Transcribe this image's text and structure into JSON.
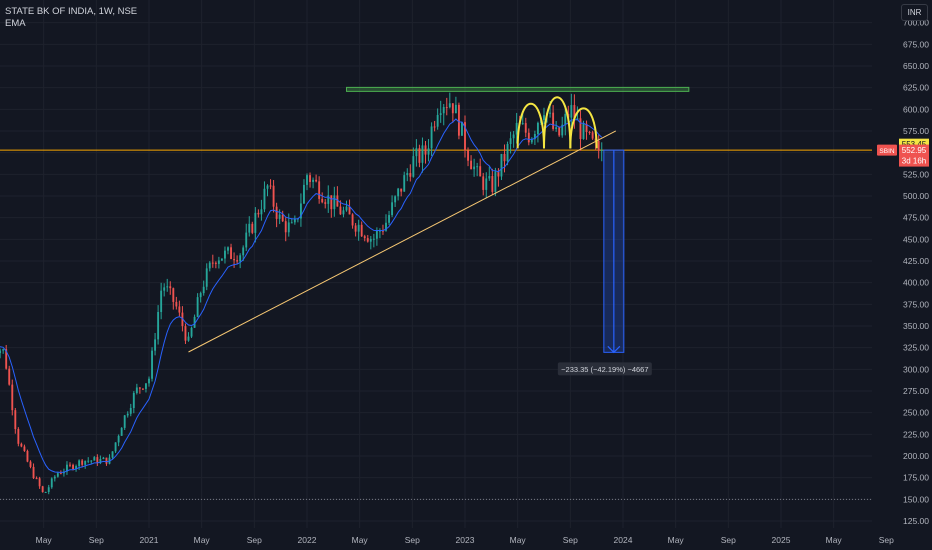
{
  "header": {
    "symbol_line": "STATE BK OF INDIA, 1W, NSE",
    "indicator": "EMA"
  },
  "currency_button": "INR",
  "colors": {
    "background": "#131722",
    "up": "#26a69a",
    "down": "#ef5350",
    "ema": "#2962ff",
    "trendline": "#f7c873",
    "resistance": "#4caf50",
    "hump": "#f4e542",
    "projection": "#2962ff"
  },
  "chart_data": {
    "type": "candlestick",
    "title": "STATE BK OF INDIA, 1W, NSE",
    "y_axis": {
      "ticks": [
        125,
        150,
        175,
        200,
        225,
        250,
        275,
        300,
        325,
        350,
        375,
        400,
        425,
        450,
        475,
        500,
        525,
        550,
        575,
        600,
        625,
        650,
        675,
        700
      ],
      "range": [
        122,
        710
      ],
      "side": "right"
    },
    "x_axis": {
      "labels": [
        "May",
        "Sep",
        "2021",
        "May",
        "Sep",
        "2022",
        "May",
        "Sep",
        "2023",
        "May",
        "Sep",
        "2024",
        "May",
        "Sep",
        "2025",
        "May",
        "Sep"
      ]
    },
    "price_path": [
      {
        "date": "2020-01",
        "value": 330
      },
      {
        "date": "2020-02",
        "value": 320
      },
      {
        "date": "2020-03",
        "value": 220
      },
      {
        "date": "2020-04",
        "value": 185
      },
      {
        "date": "2020-05",
        "value": 155
      },
      {
        "date": "2020-06",
        "value": 180
      },
      {
        "date": "2020-08",
        "value": 195
      },
      {
        "date": "2020-10",
        "value": 195
      },
      {
        "date": "2020-11",
        "value": 240
      },
      {
        "date": "2020-12",
        "value": 275
      },
      {
        "date": "2021-01",
        "value": 290
      },
      {
        "date": "2021-02",
        "value": 400
      },
      {
        "date": "2021-03",
        "value": 375
      },
      {
        "date": "2021-04",
        "value": 330
      },
      {
        "date": "2021-05",
        "value": 395
      },
      {
        "date": "2021-06",
        "value": 430
      },
      {
        "date": "2021-08",
        "value": 435
      },
      {
        "date": "2021-10",
        "value": 510
      },
      {
        "date": "2021-11",
        "value": 470
      },
      {
        "date": "2021-12",
        "value": 460
      },
      {
        "date": "2022-01",
        "value": 525
      },
      {
        "date": "2022-03",
        "value": 490
      },
      {
        "date": "2022-05",
        "value": 465
      },
      {
        "date": "2022-06",
        "value": 450
      },
      {
        "date": "2022-07",
        "value": 470
      },
      {
        "date": "2022-09",
        "value": 540
      },
      {
        "date": "2022-10",
        "value": 550
      },
      {
        "date": "2022-11",
        "value": 610
      },
      {
        "date": "2022-12",
        "value": 610
      },
      {
        "date": "2023-01",
        "value": 560
      },
      {
        "date": "2023-02",
        "value": 520
      },
      {
        "date": "2023-03",
        "value": 510
      },
      {
        "date": "2023-04",
        "value": 545
      },
      {
        "date": "2023-05",
        "value": 580
      },
      {
        "date": "2023-06",
        "value": 570
      },
      {
        "date": "2023-07",
        "value": 605
      },
      {
        "date": "2023-08",
        "value": 565
      },
      {
        "date": "2023-09",
        "value": 600
      },
      {
        "date": "2023-10",
        "value": 570
      },
      {
        "date": "2023-11",
        "value": 552.95
      }
    ],
    "ema_period_note": "",
    "last_price": 552.95,
    "last_price_label": "552.95",
    "ticker_label": "SBIN",
    "countdown_label": "3d 16h",
    "ema_value": 553.45,
    "ema_value_label": "553.45",
    "horizontal_lines": [
      {
        "value": 552.95,
        "color": "#f7a600"
      },
      {
        "value": 150,
        "color": "#787b86",
        "style": "dotted"
      }
    ],
    "resistance_zone": {
      "from_date": "2022-04",
      "to_date": "2024-06",
      "value": 623
    },
    "trendline": {
      "from": {
        "date": "2021-04",
        "value": 320
      },
      "to": {
        "date": "2023-12",
        "value": 575
      }
    },
    "hump_markers": [
      {
        "from_date": "2023-05",
        "to_date": "2023-07",
        "peak": 612,
        "base": 555
      },
      {
        "from_date": "2023-07",
        "to_date": "2023-09",
        "peak": 622,
        "base": 555
      },
      {
        "from_date": "2023-09",
        "to_date": "2023-11",
        "peak": 605,
        "base": 555
      }
    ],
    "projection": {
      "from_value": 552.95,
      "to_value": 319.6,
      "date": "2023-12",
      "label": "−233.35 (−42.19%) −4667"
    }
  }
}
